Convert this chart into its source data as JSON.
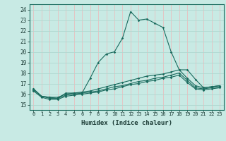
{
  "xlabel": "Humidex (Indice chaleur)",
  "xlim": [
    -0.5,
    23.5
  ],
  "ylim": [
    14.5,
    24.5
  ],
  "yticks": [
    15,
    16,
    17,
    18,
    19,
    20,
    21,
    22,
    23,
    24
  ],
  "xticks": [
    0,
    1,
    2,
    3,
    4,
    5,
    6,
    7,
    8,
    9,
    10,
    11,
    12,
    13,
    14,
    15,
    16,
    17,
    18,
    19,
    20,
    21,
    22,
    23
  ],
  "bg_color": "#c8eae4",
  "grid_color_h": "#b0d8d0",
  "grid_color_v": "#e8c0c0",
  "line_color": "#1a6b5e",
  "lines": [
    [
      16.5,
      15.8,
      15.7,
      15.6,
      16.1,
      16.1,
      16.1,
      17.5,
      19.0,
      19.8,
      20.0,
      21.3,
      23.8,
      23.0,
      23.1,
      22.7,
      22.3,
      20.0,
      18.3,
      18.3,
      17.4,
      16.6,
      16.7,
      16.8
    ],
    [
      16.5,
      15.8,
      15.7,
      15.7,
      16.0,
      16.1,
      16.2,
      16.3,
      16.5,
      16.7,
      16.9,
      17.1,
      17.3,
      17.5,
      17.7,
      17.8,
      17.9,
      18.1,
      18.3,
      17.5,
      16.8,
      16.6,
      16.7,
      16.8
    ],
    [
      16.4,
      15.8,
      15.6,
      15.6,
      15.9,
      16.0,
      16.1,
      16.2,
      16.3,
      16.5,
      16.7,
      16.8,
      17.0,
      17.2,
      17.3,
      17.5,
      17.6,
      17.8,
      18.0,
      17.3,
      16.6,
      16.5,
      16.6,
      16.7
    ],
    [
      16.3,
      15.7,
      15.5,
      15.5,
      15.8,
      15.9,
      16.0,
      16.1,
      16.2,
      16.4,
      16.5,
      16.7,
      16.9,
      17.0,
      17.2,
      17.3,
      17.5,
      17.6,
      17.8,
      17.1,
      16.5,
      16.4,
      16.5,
      16.6
    ]
  ]
}
